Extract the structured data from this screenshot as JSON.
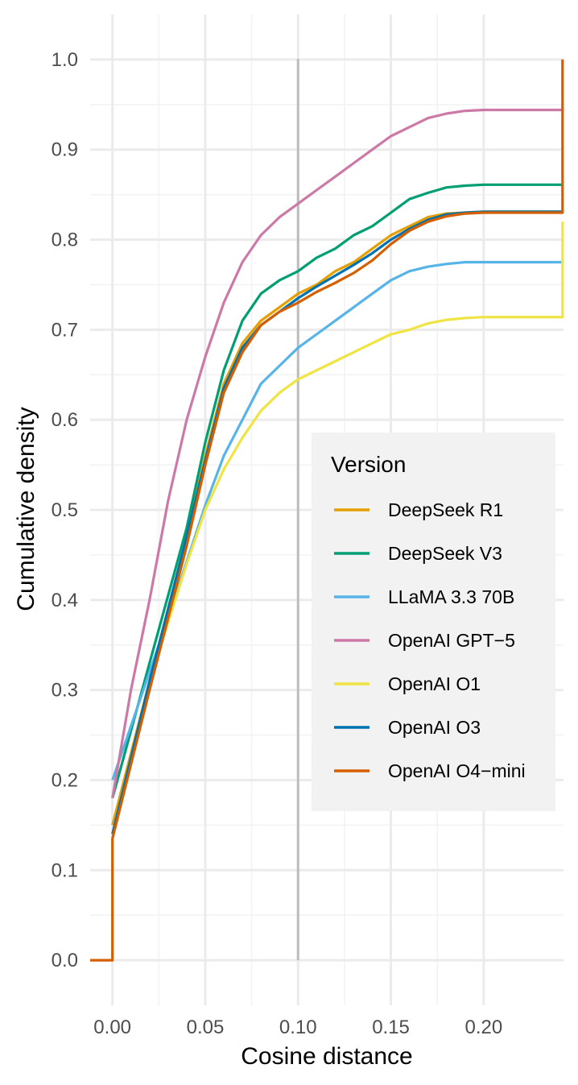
{
  "chart_data": {
    "type": "line",
    "subtype": "ecdf-step",
    "title": "",
    "xlabel": "Cosine distance",
    "ylabel": "Cumulative density",
    "xlim": [
      -0.012,
      0.243
    ],
    "ylim": [
      -0.05,
      1.05
    ],
    "x_ticks": [
      0.0,
      0.05,
      0.1,
      0.15,
      0.2
    ],
    "x_tick_labels": [
      "0.00",
      "0.05",
      "0.10",
      "0.15",
      "0.20"
    ],
    "y_ticks": [
      0.0,
      0.1,
      0.2,
      0.3,
      0.4,
      0.5,
      0.6,
      0.7,
      0.8,
      0.9,
      1.0
    ],
    "y_tick_labels": [
      "0.0",
      "0.1",
      "0.2",
      "0.3",
      "0.4",
      "0.5",
      "0.6",
      "0.7",
      "0.8",
      "0.9",
      "1.0"
    ],
    "grid": true,
    "reference_line": {
      "orientation": "vertical",
      "x": 0.1,
      "color": "#bdbdbd"
    },
    "legend": {
      "title": "Version",
      "position": "right-inside",
      "entries": [
        "DeepSeek R1",
        "DeepSeek V3",
        "LLaMA 3.3 70B",
        "OpenAI GPT−5",
        "OpenAI O1",
        "OpenAI O3",
        "OpenAI O4−mini"
      ]
    },
    "series": [
      {
        "name": "DeepSeek R1",
        "color": "#E69F00",
        "x": [
          0.0,
          0.02,
          0.04,
          0.05,
          0.06,
          0.07,
          0.08,
          0.09,
          0.1,
          0.11,
          0.12,
          0.13,
          0.14,
          0.15,
          0.16,
          0.17,
          0.18,
          0.19,
          0.2,
          0.22,
          0.243
        ],
        "y": [
          0.15,
          0.31,
          0.47,
          0.56,
          0.64,
          0.685,
          0.71,
          0.725,
          0.74,
          0.75,
          0.765,
          0.775,
          0.79,
          0.805,
          0.815,
          0.825,
          0.829,
          0.83,
          0.831,
          0.831,
          0.831
        ]
      },
      {
        "name": "DeepSeek V3",
        "color": "#009E73",
        "x": [
          0.0,
          0.02,
          0.04,
          0.05,
          0.06,
          0.07,
          0.08,
          0.09,
          0.1,
          0.11,
          0.12,
          0.13,
          0.14,
          0.15,
          0.16,
          0.17,
          0.18,
          0.19,
          0.2,
          0.22,
          0.243
        ],
        "y": [
          0.18,
          0.33,
          0.48,
          0.575,
          0.655,
          0.71,
          0.74,
          0.755,
          0.765,
          0.78,
          0.79,
          0.805,
          0.815,
          0.83,
          0.845,
          0.852,
          0.858,
          0.86,
          0.861,
          0.861,
          0.861
        ]
      },
      {
        "name": "LLaMA 3.3 70B",
        "color": "#56B4E9",
        "x": [
          0.0,
          0.01,
          0.03,
          0.05,
          0.06,
          0.07,
          0.08,
          0.09,
          0.1,
          0.11,
          0.12,
          0.13,
          0.14,
          0.15,
          0.16,
          0.17,
          0.18,
          0.19,
          0.2,
          0.22,
          0.243
        ],
        "y": [
          0.2,
          0.26,
          0.38,
          0.505,
          0.56,
          0.6,
          0.64,
          0.66,
          0.68,
          0.695,
          0.71,
          0.725,
          0.74,
          0.755,
          0.765,
          0.77,
          0.773,
          0.775,
          0.775,
          0.775,
          0.775
        ]
      },
      {
        "name": "OpenAI GPT−5",
        "color": "#CC79A7",
        "x": [
          0.0,
          0.01,
          0.02,
          0.03,
          0.04,
          0.05,
          0.06,
          0.07,
          0.08,
          0.09,
          0.1,
          0.11,
          0.12,
          0.13,
          0.14,
          0.15,
          0.16,
          0.17,
          0.18,
          0.19,
          0.2,
          0.22,
          0.243
        ],
        "y": [
          0.18,
          0.3,
          0.4,
          0.51,
          0.6,
          0.67,
          0.73,
          0.775,
          0.805,
          0.825,
          0.84,
          0.855,
          0.87,
          0.885,
          0.9,
          0.915,
          0.925,
          0.935,
          0.94,
          0.943,
          0.944,
          0.944,
          0.944
        ]
      },
      {
        "name": "OpenAI O1",
        "color": "#F0E442",
        "x": [
          0.0,
          0.02,
          0.04,
          0.05,
          0.06,
          0.07,
          0.08,
          0.09,
          0.1,
          0.11,
          0.12,
          0.13,
          0.14,
          0.15,
          0.16,
          0.17,
          0.18,
          0.19,
          0.2,
          0.22,
          0.2425,
          0.2425
        ],
        "y": [
          0.14,
          0.31,
          0.44,
          0.5,
          0.545,
          0.58,
          0.61,
          0.63,
          0.645,
          0.655,
          0.665,
          0.675,
          0.685,
          0.695,
          0.7,
          0.707,
          0.711,
          0.713,
          0.714,
          0.714,
          0.714,
          0.82
        ]
      },
      {
        "name": "OpenAI O3",
        "color": "#0072B2",
        "x": [
          0.0,
          0.02,
          0.04,
          0.05,
          0.06,
          0.07,
          0.08,
          0.09,
          0.1,
          0.11,
          0.12,
          0.13,
          0.14,
          0.15,
          0.16,
          0.17,
          0.18,
          0.19,
          0.2,
          0.22,
          0.243
        ],
        "y": [
          0.14,
          0.31,
          0.47,
          0.555,
          0.635,
          0.68,
          0.705,
          0.72,
          0.735,
          0.748,
          0.76,
          0.772,
          0.785,
          0.8,
          0.812,
          0.822,
          0.828,
          0.83,
          0.831,
          0.831,
          0.831
        ]
      },
      {
        "name": "OpenAI O4−mini",
        "color": "#D55E00",
        "x": [
          -0.012,
          0.0,
          0.0,
          0.02,
          0.04,
          0.05,
          0.06,
          0.07,
          0.08,
          0.09,
          0.1,
          0.11,
          0.12,
          0.13,
          0.14,
          0.15,
          0.16,
          0.17,
          0.18,
          0.19,
          0.2,
          0.22,
          0.2425,
          0.2425
        ],
        "y": [
          0.0,
          0.0,
          0.135,
          0.3,
          0.46,
          0.55,
          0.63,
          0.675,
          0.705,
          0.72,
          0.73,
          0.742,
          0.752,
          0.763,
          0.777,
          0.795,
          0.81,
          0.82,
          0.826,
          0.829,
          0.83,
          0.83,
          0.83,
          1.0
        ]
      }
    ]
  }
}
